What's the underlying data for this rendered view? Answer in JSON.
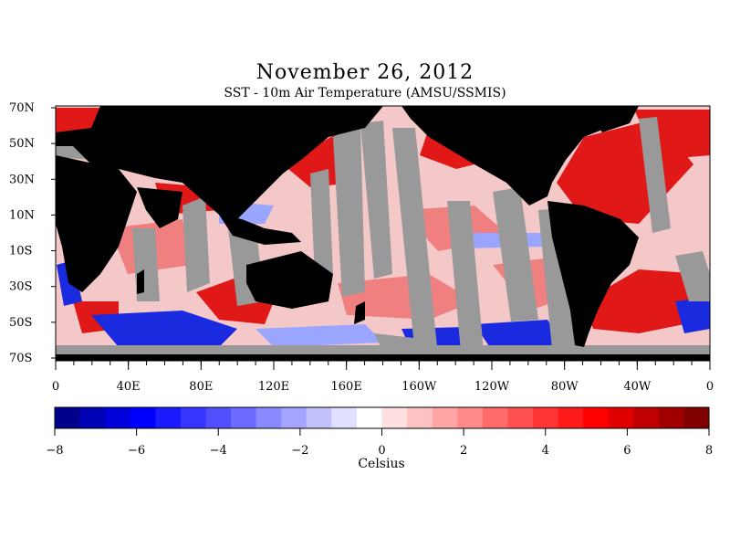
{
  "title": "November 26, 2012",
  "subtitle": "SST - 10m Air Temperature (AMSU/SSMIS)",
  "lat_labels": [
    "70N",
    "50N",
    "30N",
    "10N",
    "10S",
    "30S",
    "50S",
    "70S"
  ],
  "lon_labels": [
    "0",
    "40E",
    "80E",
    "120E",
    "160E",
    "160W",
    "120W",
    "80W",
    "40W",
    "0"
  ],
  "colorbar": {
    "ticks": [
      "−8",
      "−6",
      "−4",
      "−2",
      "0",
      "2",
      "4",
      "6",
      "8"
    ],
    "unit": "Celsius",
    "range": [
      -8,
      8
    ],
    "colors": [
      "#00008b",
      "#0000b5",
      "#0000d8",
      "#0000ff",
      "#1a1aff",
      "#3535ff",
      "#5050ff",
      "#6b6bff",
      "#8a8aff",
      "#a5a5ff",
      "#c2c2ff",
      "#e0e0ff",
      "#ffffff",
      "#ffe0e0",
      "#ffc2c2",
      "#ffa5a5",
      "#ff8a8a",
      "#ff6b6b",
      "#ff5050",
      "#ff3535",
      "#ff1a1a",
      "#ff0000",
      "#e00000",
      "#c00000",
      "#a00000",
      "#800000"
    ]
  },
  "map_colors": {
    "land": "#000000",
    "no_data": "#999999",
    "warm": "#dd1a1a",
    "cold": "#1a2adf"
  }
}
